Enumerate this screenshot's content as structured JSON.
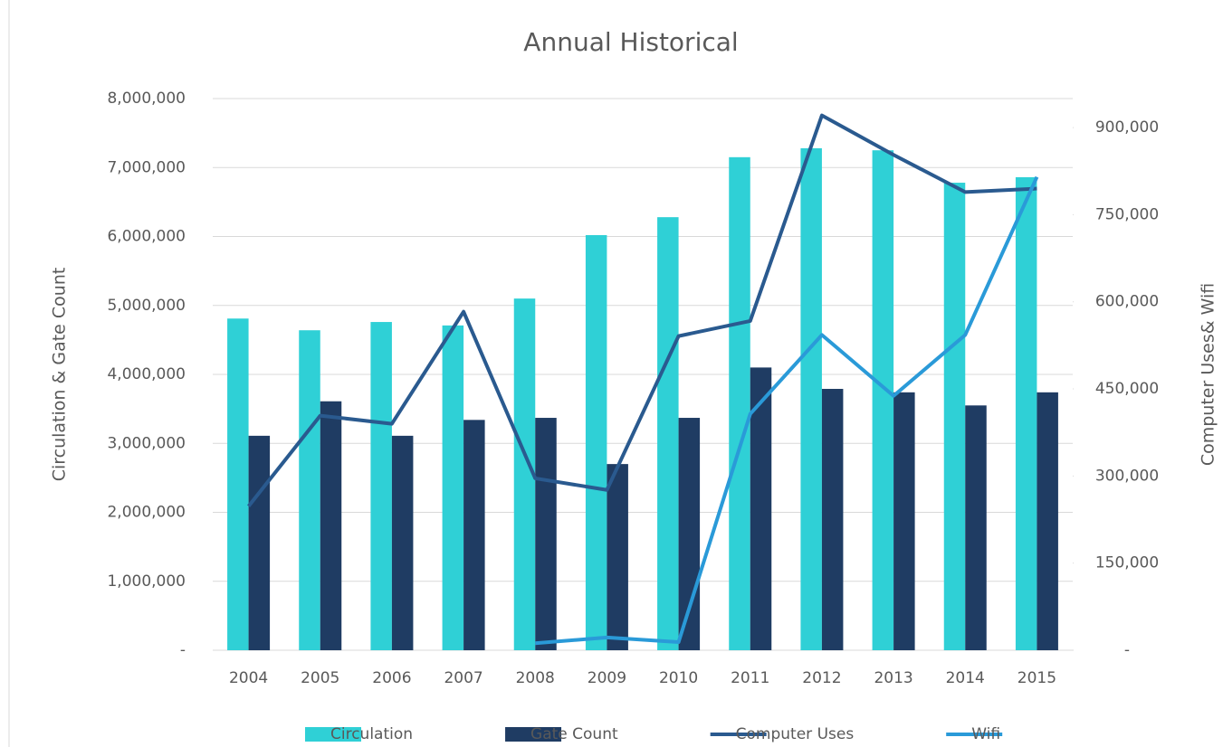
{
  "chart_data": {
    "type": "bar_line",
    "title": "Annual Historical",
    "y_label": "Circulation & Gate Count",
    "y2_label": "Computer Uses& Wifi",
    "categories": [
      "2004",
      "2005",
      "2006",
      "2007",
      "2008",
      "2009",
      "2010",
      "2011",
      "2012",
      "2013",
      "2014",
      "2015"
    ],
    "series": [
      {
        "name": "Circulation",
        "type": "bar",
        "color": "#2fd0d6",
        "values": [
          4810000,
          4640000,
          4760000,
          4710000,
          5100000,
          6020000,
          6280000,
          7150000,
          7280000,
          7250000,
          6780000,
          6860000
        ]
      },
      {
        "name": "Gate Count",
        "type": "bar",
        "color": "#1f3c63",
        "values": [
          3110000,
          3610000,
          3110000,
          3340000,
          3370000,
          2700000,
          3370000,
          4100000,
          3790000,
          3740000,
          3550000,
          3740000
        ]
      },
      {
        "name": "Computer Uses",
        "type": "line",
        "axis": "y2",
        "color": "#2a5a8f",
        "values": [
          248000,
          404000,
          390000,
          583000,
          296000,
          276000,
          541000,
          567000,
          921000,
          853000,
          789000,
          795000
        ]
      },
      {
        "name": "Wifi",
        "type": "line",
        "axis": "y2",
        "color": "#2a9ad8",
        "values": [
          null,
          null,
          null,
          null,
          12000,
          22000,
          14000,
          407000,
          543000,
          438000,
          543000,
          815000
        ]
      }
    ],
    "ylim": [
      0,
      8000000
    ],
    "yticks": [
      {
        "value": 0,
        "label": "-"
      },
      {
        "value": 1000000,
        "label": "1,000,000"
      },
      {
        "value": 2000000,
        "label": "2,000,000"
      },
      {
        "value": 3000000,
        "label": "3,000,000"
      },
      {
        "value": 4000000,
        "label": "4,000,000"
      },
      {
        "value": 5000000,
        "label": "5,000,000"
      },
      {
        "value": 6000000,
        "label": "6,000,000"
      },
      {
        "value": 7000000,
        "label": "7,000,000"
      },
      {
        "value": 8000000,
        "label": "8,000,000"
      }
    ],
    "y2lim": [
      0,
      950000
    ],
    "y2ticks": [
      {
        "value": 0,
        "label": "-"
      },
      {
        "value": 150000,
        "label": "150,000"
      },
      {
        "value": 300000,
        "label": "300,000"
      },
      {
        "value": 450000,
        "label": "450,000"
      },
      {
        "value": 600000,
        "label": "600,000"
      },
      {
        "value": 750000,
        "label": "750,000"
      },
      {
        "value": 900000,
        "label": "900,000"
      }
    ],
    "grid": true,
    "legend": "bottom"
  }
}
